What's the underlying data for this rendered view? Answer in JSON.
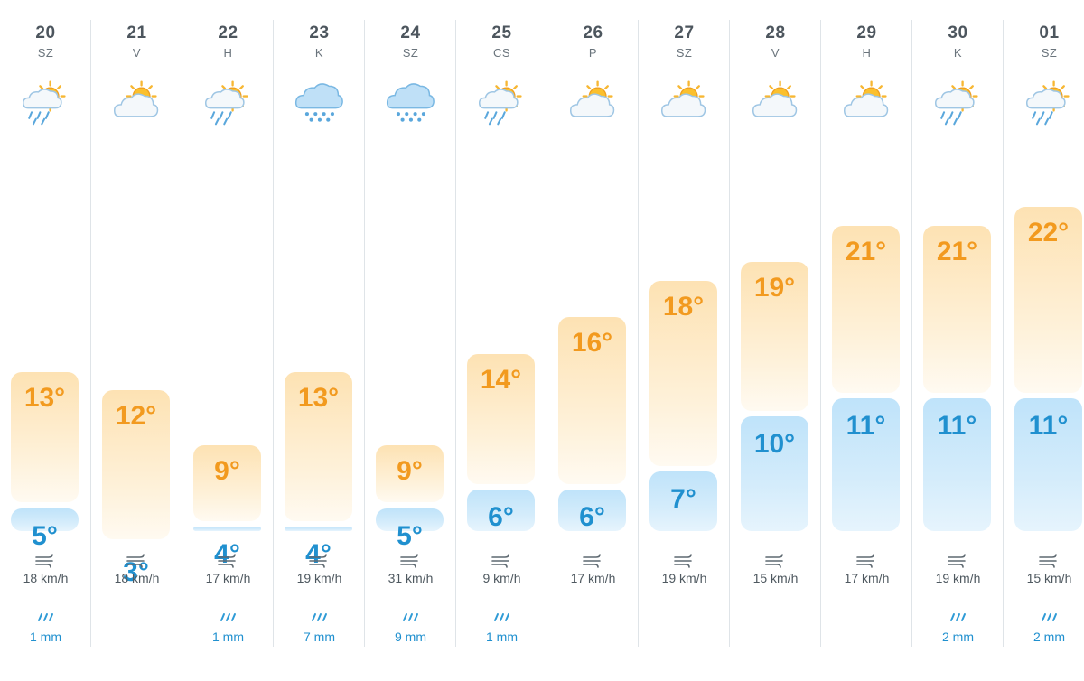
{
  "colors": {
    "max_text": "#f29a1f",
    "min_text": "#2090cf",
    "separator": "#dfe4e8"
  },
  "days": [
    {
      "date": "20",
      "dow": "SZ",
      "icon": "rain-sun-icon",
      "max": 13,
      "max_label": "13°",
      "min": 5,
      "min_label": "5°",
      "wind": "18 km/h",
      "rain": "1 mm"
    },
    {
      "date": "21",
      "dow": "V",
      "icon": "partly-cloudy-icon",
      "max": 12,
      "max_label": "12°",
      "min": 3,
      "min_label": "3°",
      "wind": "18 km/h",
      "rain": ""
    },
    {
      "date": "22",
      "dow": "H",
      "icon": "rain-sun-icon",
      "max": 9,
      "max_label": "9°",
      "min": 4,
      "min_label": "4°",
      "wind": "17 km/h",
      "rain": "1 mm"
    },
    {
      "date": "23",
      "dow": "K",
      "icon": "rain-cloud-icon",
      "max": 13,
      "max_label": "13°",
      "min": 4,
      "min_label": "4°",
      "wind": "19 km/h",
      "rain": "7 mm"
    },
    {
      "date": "24",
      "dow": "SZ",
      "icon": "rain-cloud-icon",
      "max": 9,
      "max_label": "9°",
      "min": 5,
      "min_label": "5°",
      "wind": "31 km/h",
      "rain": "9 mm"
    },
    {
      "date": "25",
      "dow": "CS",
      "icon": "rain-sun-icon",
      "max": 14,
      "max_label": "14°",
      "min": 6,
      "min_label": "6°",
      "wind": "9 km/h",
      "rain": "1 mm"
    },
    {
      "date": "26",
      "dow": "P",
      "icon": "partly-cloudy-icon",
      "max": 16,
      "max_label": "16°",
      "min": 6,
      "min_label": "6°",
      "wind": "17 km/h",
      "rain": ""
    },
    {
      "date": "27",
      "dow": "SZ",
      "icon": "partly-cloudy-icon",
      "max": 18,
      "max_label": "18°",
      "min": 7,
      "min_label": "7°",
      "wind": "19 km/h",
      "rain": ""
    },
    {
      "date": "28",
      "dow": "V",
      "icon": "partly-cloudy-icon",
      "max": 19,
      "max_label": "19°",
      "min": 10,
      "min_label": "10°",
      "wind": "15 km/h",
      "rain": ""
    },
    {
      "date": "29",
      "dow": "H",
      "icon": "partly-cloudy-icon",
      "max": 21,
      "max_label": "21°",
      "min": 11,
      "min_label": "11°",
      "wind": "17 km/h",
      "rain": ""
    },
    {
      "date": "30",
      "dow": "K",
      "icon": "rain-sun-icon",
      "max": 21,
      "max_label": "21°",
      "min": 11,
      "min_label": "11°",
      "wind": "19 km/h",
      "rain": "2 mm"
    },
    {
      "date": "01",
      "dow": "SZ",
      "icon": "rain-sun-icon",
      "max": 22,
      "max_label": "22°",
      "min": 11,
      "min_label": "11°",
      "wind": "15 km/h",
      "rain": "2 mm"
    }
  ]
}
